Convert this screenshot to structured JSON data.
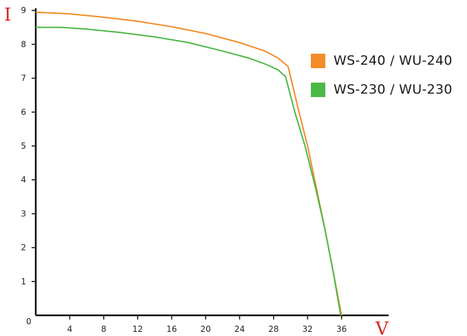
{
  "chart_data": {
    "type": "line",
    "title": "",
    "ylabel": "I",
    "xlabel": "V",
    "xlim": [
      0,
      40
    ],
    "ylim": [
      0,
      9.2
    ],
    "xticks": [
      4,
      8,
      12,
      16,
      20,
      24,
      28,
      32,
      36
    ],
    "yticks": [
      1,
      2,
      3,
      4,
      5,
      6,
      7,
      8,
      9
    ],
    "origin_label": "0",
    "grid": false,
    "legend_position": "top-right",
    "series": [
      {
        "name": "WS-240 / WU-240",
        "color": "#f28c28",
        "points": [
          [
            0,
            8.95
          ],
          [
            4,
            8.9
          ],
          [
            8,
            8.8
          ],
          [
            12,
            8.68
          ],
          [
            16,
            8.52
          ],
          [
            20,
            8.32
          ],
          [
            24,
            8.05
          ],
          [
            27,
            7.8
          ],
          [
            28.5,
            7.6
          ],
          [
            29.7,
            7.35
          ],
          [
            31,
            6.0
          ],
          [
            32,
            5.0
          ],
          [
            33,
            3.8
          ],
          [
            34,
            2.6
          ],
          [
            35,
            1.3
          ],
          [
            36,
            0
          ]
        ]
      },
      {
        "name": "WS-230 / WU-230",
        "color": "#4cb848",
        "points": [
          [
            0,
            8.5
          ],
          [
            3,
            8.5
          ],
          [
            6,
            8.45
          ],
          [
            10,
            8.35
          ],
          [
            14,
            8.22
          ],
          [
            18,
            8.05
          ],
          [
            22,
            7.8
          ],
          [
            25,
            7.6
          ],
          [
            27,
            7.42
          ],
          [
            28.5,
            7.25
          ],
          [
            29.4,
            7.05
          ],
          [
            30.5,
            6.0
          ],
          [
            31.7,
            5.0
          ],
          [
            32.9,
            3.8
          ],
          [
            34,
            2.6
          ],
          [
            35,
            1.3
          ],
          [
            35.9,
            0
          ]
        ]
      }
    ]
  }
}
